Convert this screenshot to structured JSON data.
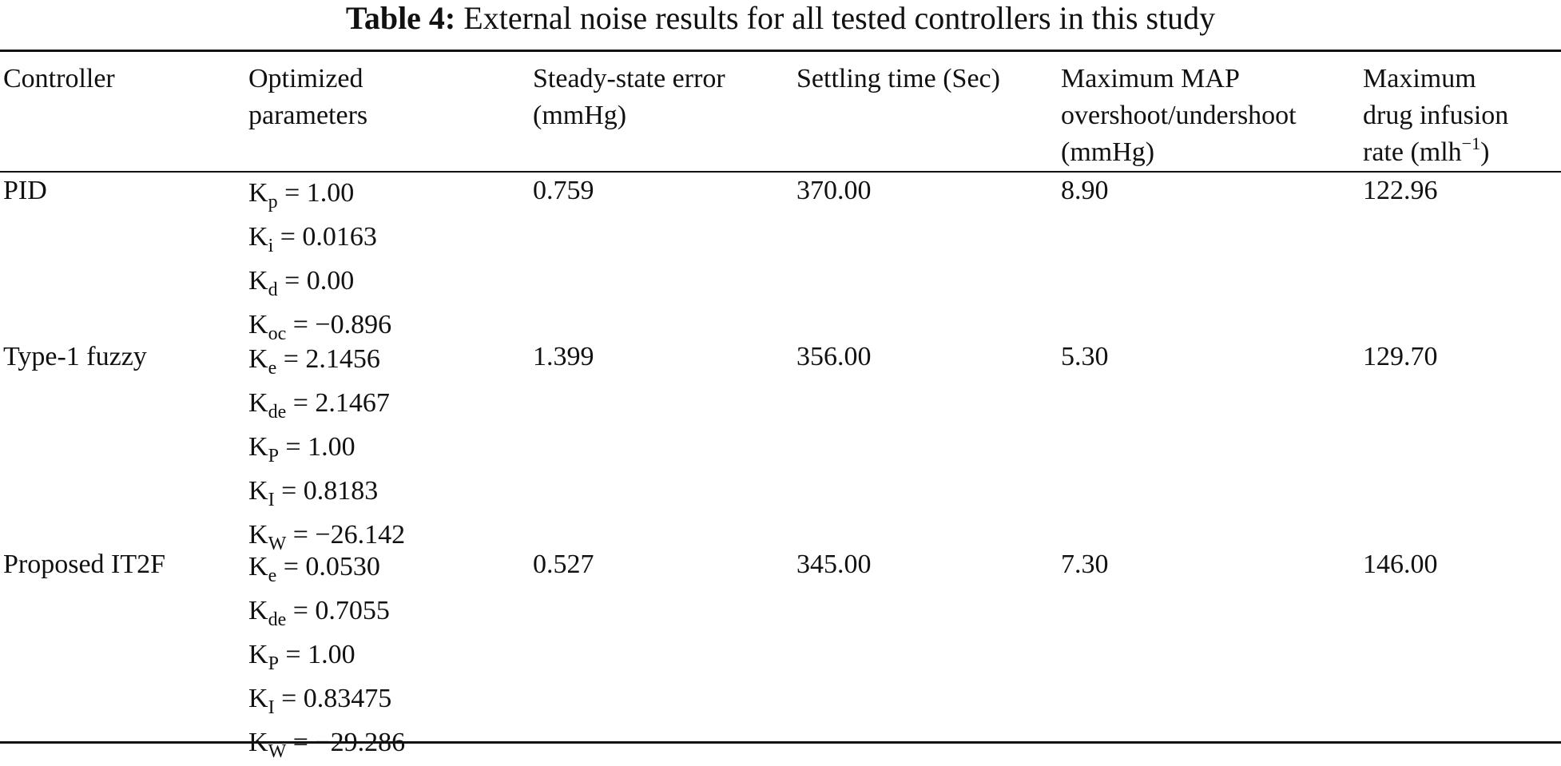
{
  "caption": {
    "label": "Table 4:",
    "text": "External noise results for all tested controllers in this study"
  },
  "headers": {
    "controller": "Controller",
    "params_l1": "Optimized",
    "params_l2": "parameters",
    "sse_l1": "Steady-state error",
    "sse_l2": "(mmHg)",
    "settling": "Settling time (Sec)",
    "map_l1": "Maximum MAP",
    "map_l2": "overshoot/undershoot",
    "map_l3": "(mmHg)",
    "drug_l1": "Maximum",
    "drug_l2": "drug infusion",
    "drug_l3_a": "rate (mlh",
    "drug_l3_sup": "−1",
    "drug_l3_b": ")"
  },
  "rows": [
    {
      "controller": "PID",
      "params": [
        {
          "base": "K",
          "sub": "p",
          "value": " = 1.00"
        },
        {
          "base": "K",
          "sub": "i",
          "value": " = 0.0163"
        },
        {
          "base": "K",
          "sub": "d",
          "value": " = 0.00"
        },
        {
          "base": "K",
          "sub": "oc",
          "value": " = −0.896"
        }
      ],
      "sse": "0.759",
      "settling": "370.00",
      "map": "8.90",
      "drug": "122.96"
    },
    {
      "controller": "Type-1 fuzzy",
      "params": [
        {
          "base": "K",
          "sub": "e",
          "value": " = 2.1456"
        },
        {
          "base": "K",
          "sub": "de",
          "value": " = 2.1467"
        },
        {
          "base": "K",
          "sub": "P",
          "value": " = 1.00"
        },
        {
          "base": "K",
          "sub": "I",
          "value": " = 0.8183"
        },
        {
          "base": "K",
          "sub": "W",
          "value": " = −26.142"
        }
      ],
      "sse": "1.399",
      "settling": "356.00",
      "map": "5.30",
      "drug": "129.70"
    },
    {
      "controller": "Proposed IT2F",
      "params": [
        {
          "base": "K",
          "sub": "e",
          "value": " = 0.0530"
        },
        {
          "base": "K",
          "sub": "de",
          "value": " = 0.7055"
        },
        {
          "base": "K",
          "sub": "P",
          "value": " = 1.00"
        },
        {
          "base": "K",
          "sub": "I",
          "value": " = 0.83475"
        },
        {
          "base": "K",
          "sub": "W",
          "value": " = −29.286"
        }
      ],
      "sse": "0.527",
      "settling": "345.00",
      "map": "7.30",
      "drug": "146.00"
    }
  ]
}
